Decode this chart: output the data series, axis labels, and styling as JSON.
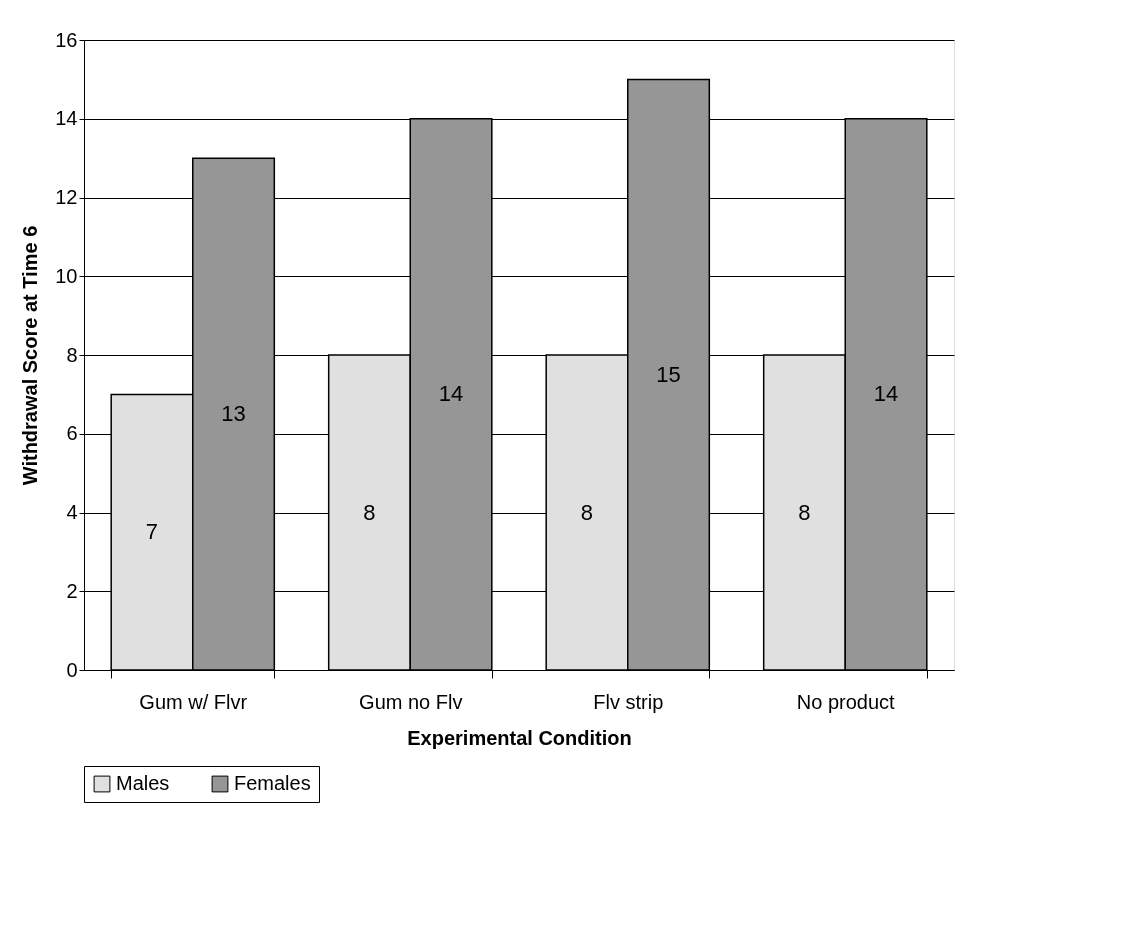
{
  "chart_data": {
    "type": "bar",
    "xlabel": "Experimental Condition",
    "ylabel": "Withdrawal Score at Time 6",
    "categories": [
      "Gum w/ Flvr",
      "Gum no Flv",
      "Flv strip",
      "No product"
    ],
    "series": [
      {
        "name": "Males",
        "color": "#e0e0e0",
        "values": [
          7,
          8,
          8,
          8
        ]
      },
      {
        "name": "Females",
        "color": "#969696",
        "values": [
          13,
          14,
          15,
          14
        ]
      }
    ],
    "ylim": [
      0,
      16
    ],
    "yticks": [
      0,
      2,
      4,
      6,
      8,
      10,
      12,
      14,
      16
    ],
    "grid": "y",
    "legend": "bottom",
    "data_labels": true
  }
}
